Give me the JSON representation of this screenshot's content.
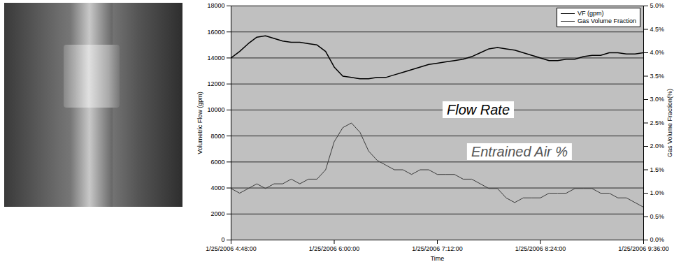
{
  "chart_data": {
    "type": "line",
    "x": [
      "2006-01-25T04:48:00",
      "2006-01-25T04:54:00",
      "2006-01-25T05:00:00",
      "2006-01-25T05:06:00",
      "2006-01-25T05:12:00",
      "2006-01-25T05:18:00",
      "2006-01-25T05:24:00",
      "2006-01-25T05:30:00",
      "2006-01-25T05:36:00",
      "2006-01-25T05:42:00",
      "2006-01-25T05:48:00",
      "2006-01-25T05:54:00",
      "2006-01-25T06:00:00",
      "2006-01-25T06:06:00",
      "2006-01-25T06:12:00",
      "2006-01-25T06:18:00",
      "2006-01-25T06:24:00",
      "2006-01-25T06:30:00",
      "2006-01-25T06:36:00",
      "2006-01-25T06:42:00",
      "2006-01-25T06:48:00",
      "2006-01-25T06:54:00",
      "2006-01-25T07:00:00",
      "2006-01-25T07:06:00",
      "2006-01-25T07:12:00",
      "2006-01-25T07:18:00",
      "2006-01-25T07:24:00",
      "2006-01-25T07:30:00",
      "2006-01-25T07:36:00",
      "2006-01-25T07:42:00",
      "2006-01-25T07:48:00",
      "2006-01-25T07:54:00",
      "2006-01-25T08:00:00",
      "2006-01-25T08:06:00",
      "2006-01-25T08:12:00",
      "2006-01-25T08:18:00",
      "2006-01-25T08:24:00",
      "2006-01-25T08:30:00",
      "2006-01-25T08:36:00",
      "2006-01-25T08:42:00",
      "2006-01-25T08:48:00",
      "2006-01-25T08:54:00",
      "2006-01-25T09:00:00",
      "2006-01-25T09:06:00",
      "2006-01-25T09:12:00",
      "2006-01-25T09:18:00",
      "2006-01-25T09:24:00",
      "2006-01-25T09:30:00",
      "2006-01-25T09:36:00"
    ],
    "xlim": [
      "2006-01-25T04:48:00",
      "2006-01-25T09:36:00"
    ],
    "xticks": [
      {
        "value": "2006-01-25T04:48:00",
        "label": "1/25/2006 4:48:00"
      },
      {
        "value": "2006-01-25T06:00:00",
        "label": "1/25/2006 6:00:00"
      },
      {
        "value": "2006-01-25T07:12:00",
        "label": "1/25/2006 7:12:00"
      },
      {
        "value": "2006-01-25T08:24:00",
        "label": "1/25/2006 8:24:00"
      },
      {
        "value": "2006-01-25T09:36:00",
        "label": "1/25/2006 9:36:00"
      }
    ],
    "x_label": "Time",
    "y_label": "Volumetric Flow (gpm)",
    "ylim": [
      0,
      18000
    ],
    "yticks": [
      0,
      2000,
      4000,
      6000,
      8000,
      10000,
      12000,
      14000,
      16000,
      18000
    ],
    "y2_label": "Gas Volume Fraction(%)",
    "y2lim": [
      0,
      5
    ],
    "y2ticks": [
      {
        "value": 0,
        "label": "0.0%"
      },
      {
        "value": 0.5,
        "label": "0.5%"
      },
      {
        "value": 1,
        "label": "1.0%"
      },
      {
        "value": 1.5,
        "label": "1.5%"
      },
      {
        "value": 2,
        "label": "2.0%"
      },
      {
        "value": 2.5,
        "label": "2.5%"
      },
      {
        "value": 3,
        "label": "3.0%"
      },
      {
        "value": 3.5,
        "label": "3.5%"
      },
      {
        "value": 4,
        "label": "4.0%"
      },
      {
        "value": 4.5,
        "label": "4.5%"
      },
      {
        "value": 5,
        "label": "5.0%"
      }
    ],
    "series": [
      {
        "name": "VF (gpm)",
        "color": "#000000",
        "values": [
          14000,
          14500,
          15100,
          15600,
          15700,
          15500,
          15300,
          15200,
          15200,
          15100,
          15000,
          14500,
          13300,
          12600,
          12500,
          12400,
          12400,
          12500,
          12500,
          12700,
          12900,
          13100,
          13300,
          13500,
          13600,
          13700,
          13800,
          13900,
          14100,
          14400,
          14700,
          14800,
          14700,
          14600,
          14400,
          14200,
          14000,
          13800,
          13800,
          13900,
          13900,
          14100,
          14200,
          14200,
          14400,
          14400,
          14300,
          14300,
          14400
        ]
      },
      {
        "name": "Gas Volume Fraction",
        "color": "#3a3a3a",
        "axis": "y2",
        "values": [
          1.1,
          1.0,
          1.1,
          1.2,
          1.1,
          1.2,
          1.2,
          1.3,
          1.2,
          1.3,
          1.3,
          1.5,
          2.1,
          2.4,
          2.5,
          2.3,
          1.9,
          1.7,
          1.6,
          1.5,
          1.5,
          1.4,
          1.5,
          1.5,
          1.4,
          1.4,
          1.4,
          1.3,
          1.3,
          1.2,
          1.1,
          1.1,
          0.9,
          0.8,
          0.9,
          0.9,
          0.9,
          1.0,
          1.0,
          1.0,
          1.1,
          1.1,
          1.1,
          1.0,
          1.0,
          0.9,
          0.9,
          0.8,
          0.7
        ]
      }
    ],
    "annotations": [
      "Flow Rate",
      "Entrained Air %"
    ],
    "grid": true,
    "legend": "top-right"
  }
}
